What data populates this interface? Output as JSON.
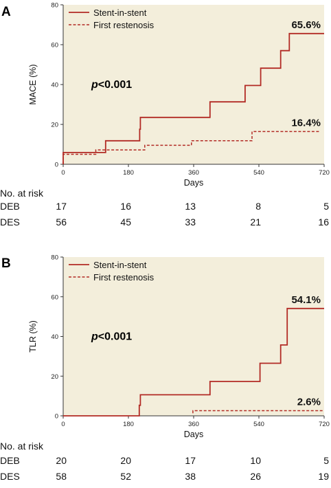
{
  "colors": {
    "plot_bg": "#f3eedb",
    "line": "#b22a24",
    "axis": "#333333"
  },
  "chart_data": [
    {
      "type": "line",
      "panel_letter": "A",
      "ylabel": "MACE (%)",
      "xlabel": "Days",
      "xlim": [
        0,
        720
      ],
      "ylim": [
        0,
        80
      ],
      "xticks": [
        0,
        180,
        360,
        540,
        720
      ],
      "yticks": [
        0,
        20,
        40,
        60,
        80
      ],
      "p_value_prefix": "p",
      "p_value_rest": "<0.001",
      "series": [
        {
          "name": "Stent-in-stent",
          "style": "solid",
          "end_label": "65.6%",
          "points": [
            [
              0,
              0
            ],
            [
              0,
              5.9
            ],
            [
              117,
              5.9
            ],
            [
              117,
              11.8
            ],
            [
              211,
              11.8
            ],
            [
              211,
              17.6
            ],
            [
              213,
              17.6
            ],
            [
              213,
              23.5
            ],
            [
              405,
              23.5
            ],
            [
              405,
              31.3
            ],
            [
              502,
              31.3
            ],
            [
              502,
              39.5
            ],
            [
              545,
              39.5
            ],
            [
              545,
              48.2
            ],
            [
              600,
              48.2
            ],
            [
              600,
              57
            ],
            [
              624,
              57
            ],
            [
              624,
              65.6
            ],
            [
              720,
              65.6
            ]
          ]
        },
        {
          "name": "First restenosis",
          "style": "dashed",
          "end_label": "16.4%",
          "points": [
            [
              0,
              0
            ],
            [
              0,
              5.0
            ],
            [
              90,
              5.0
            ],
            [
              90,
              7.2
            ],
            [
              225,
              7.2
            ],
            [
              225,
              9.5
            ],
            [
              354,
              9.5
            ],
            [
              354,
              11.8
            ],
            [
              521,
              11.8
            ],
            [
              521,
              16.4
            ],
            [
              710,
              16.4
            ]
          ]
        }
      ],
      "risk_table": {
        "title": "No. at risk",
        "x": [
          0,
          180,
          360,
          540,
          720
        ],
        "rows": [
          {
            "label": "DEB",
            "values": [
              "17",
              "16",
              "13",
              "8",
              "5"
            ]
          },
          {
            "label": "DES",
            "values": [
              "56",
              "45",
              "33",
              "21",
              "16"
            ]
          }
        ]
      }
    },
    {
      "type": "line",
      "panel_letter": "B",
      "ylabel": "TLR (%)",
      "xlabel": "Days",
      "xlim": [
        0,
        720
      ],
      "ylim": [
        0,
        80
      ],
      "xticks": [
        0,
        180,
        360,
        540,
        720
      ],
      "yticks": [
        0,
        20,
        40,
        60,
        80
      ],
      "p_value_prefix": "p",
      "p_value_rest": "<0.001",
      "series": [
        {
          "name": "Stent-in-stent",
          "style": "solid",
          "end_label": "54.1%",
          "points": [
            [
              0,
              0
            ],
            [
              210,
              0
            ],
            [
              210,
              5.3
            ],
            [
              213,
              5.3
            ],
            [
              213,
              10.6
            ],
            [
              405,
              10.6
            ],
            [
              405,
              17.3
            ],
            [
              543,
              17.3
            ],
            [
              543,
              26.5
            ],
            [
              600,
              26.5
            ],
            [
              600,
              35.7
            ],
            [
              618,
              35.7
            ],
            [
              618,
              54.1
            ],
            [
              720,
              54.1
            ]
          ]
        },
        {
          "name": "First restenosis",
          "style": "dashed",
          "end_label": "2.6%",
          "points": [
            [
              358,
              1.3
            ],
            [
              358,
              2.6
            ],
            [
              720,
              2.6
            ]
          ]
        }
      ],
      "risk_table": {
        "title": "No. at risk",
        "x": [
          0,
          180,
          360,
          540,
          720
        ],
        "rows": [
          {
            "label": "DEB",
            "values": [
              "20",
              "20",
              "17",
              "10",
              "5"
            ]
          },
          {
            "label": "DES",
            "values": [
              "58",
              "52",
              "38",
              "26",
              "19"
            ]
          }
        ]
      }
    }
  ]
}
